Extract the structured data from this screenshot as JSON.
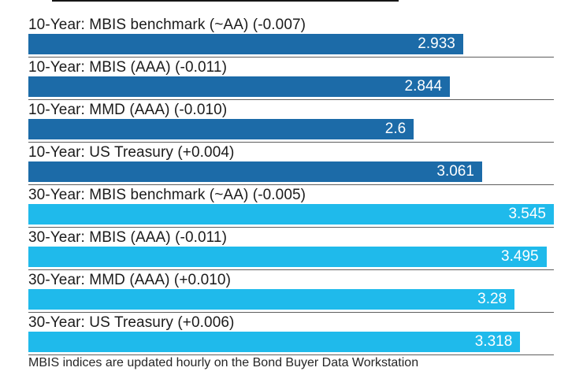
{
  "chart_data": {
    "type": "bar",
    "orientation": "horizontal",
    "title": "",
    "xlabel": "",
    "ylabel": "",
    "xlim": [
      0,
      3.545
    ],
    "grid": false,
    "legend": "none",
    "value_labels_position": "inside-right",
    "group_colors": {
      "10-year": "#1C6BA8",
      "30-year": "#1FBAEB"
    },
    "rows": [
      {
        "label": "10-Year: MBIS benchmark (~AA) (-0.007)",
        "value": 2.933,
        "value_label": "2.933",
        "group": "10-year"
      },
      {
        "label": "10-Year: MBIS (AAA) (-0.011)",
        "value": 2.844,
        "value_label": "2.844",
        "group": "10-year"
      },
      {
        "label": "10-Year: MMD (AAA) (-0.010)",
        "value": 2.6,
        "value_label": "2.6",
        "group": "10-year"
      },
      {
        "label": "10-Year: US Treasury (+0.004)",
        "value": 3.061,
        "value_label": "3.061",
        "group": "10-year"
      },
      {
        "label": "30-Year: MBIS benchmark (~AA) (-0.005)",
        "value": 3.545,
        "value_label": "3.545",
        "group": "30-year"
      },
      {
        "label": "30-Year: MBIS (AAA) (-0.011)",
        "value": 3.495,
        "value_label": "3.495",
        "group": "30-year"
      },
      {
        "label": "30-Year: MMD (AAA) (+0.010)",
        "value": 3.28,
        "value_label": "3.28",
        "group": "30-year"
      },
      {
        "label": "30-Year: US Treasury (+0.006)",
        "value": 3.318,
        "value_label": "3.318",
        "group": "30-year"
      }
    ]
  },
  "footer": {
    "note": "MBIS indices are updated hourly on the Bond Buyer Data Workstation"
  },
  "colors": {
    "bar_dark_blue": "#1C6BA8",
    "bar_light_cyan": "#1FBAEB",
    "separator_gray": "#5d5d5d",
    "label_text": "#1b1b1b",
    "value_text": "#ffffff",
    "top_rule": "#161616"
  }
}
